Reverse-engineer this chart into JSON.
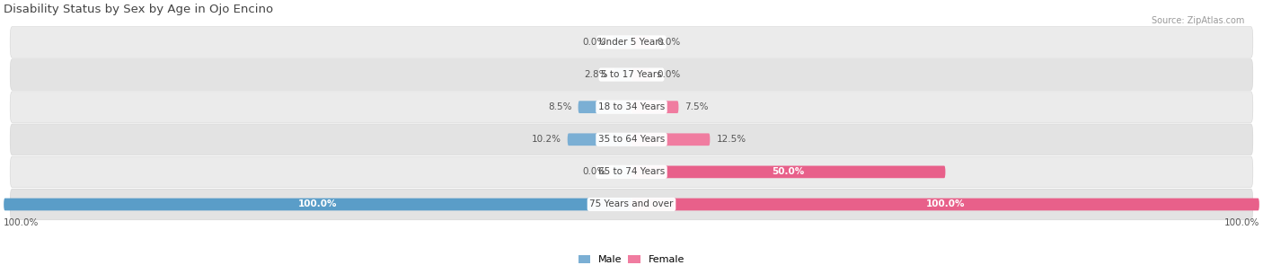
{
  "title": "Disability Status by Sex by Age in Ojo Encino",
  "source": "Source: ZipAtlas.com",
  "categories": [
    "Under 5 Years",
    "5 to 17 Years",
    "18 to 34 Years",
    "35 to 64 Years",
    "65 to 74 Years",
    "75 Years and over"
  ],
  "male_values": [
    0.0,
    2.8,
    8.5,
    10.2,
    0.0,
    100.0
  ],
  "female_values": [
    0.0,
    0.0,
    7.5,
    12.5,
    50.0,
    100.0
  ],
  "male_color": "#7bafd4",
  "female_color": "#f07ca0",
  "male_color_full": "#5a9dc8",
  "female_color_full": "#e8608a",
  "row_bg_color_odd": "#ececec",
  "row_bg_color_even": "#e0e0e0",
  "max_value": 100.0,
  "title_color": "#444444",
  "source_color": "#999999",
  "value_text_color": "#555555",
  "category_text_color": "#444444",
  "value_text_color_inside": "#ffffff"
}
